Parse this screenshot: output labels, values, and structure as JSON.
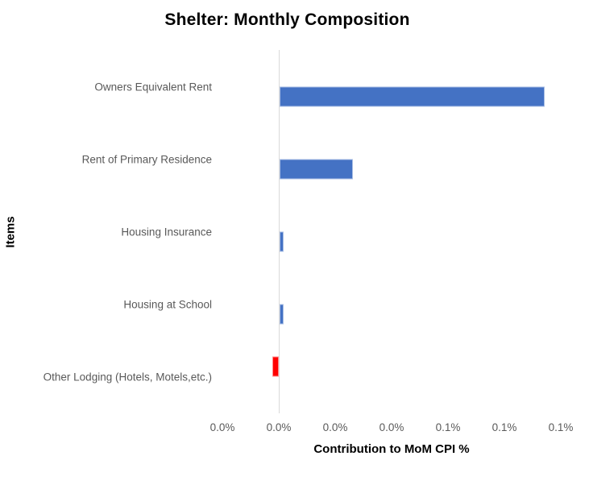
{
  "chart_data": {
    "type": "bar",
    "orientation": "horizontal",
    "title": "Shelter: Monthly Composition",
    "xlabel": "Contribution to MoM CPI %",
    "ylabel": "Items",
    "categories": [
      "Owners Equivalent Rent",
      "Rent of Primary Residence",
      "Housing Insurance",
      "Housing at School",
      "Other Lodging (Hotels, Motels,etc.)"
    ],
    "values": [
      0.094,
      0.026,
      0.0013,
      0.0013,
      -0.0024
    ],
    "value_unit": "%",
    "xlim": [
      -0.02,
      0.1
    ],
    "x_tick_step": 0.02,
    "x_ticks": [
      -0.02,
      0.0,
      0.02,
      0.04,
      0.06,
      0.08,
      0.1
    ],
    "x_tick_labels": [
      "0.0%",
      "0.0%",
      "0.0%",
      "0.0%",
      "0.1%",
      "0.1%",
      "0.1%"
    ],
    "gridlines": false,
    "legend": false,
    "colors": {
      "positive_bar": "#4472C4",
      "negative_bar": "#FF0000",
      "axis_line": "#D9D9D9",
      "tick_label_text": "#595959",
      "category_label_text": "#595959",
      "title_text": "#000000"
    }
  }
}
